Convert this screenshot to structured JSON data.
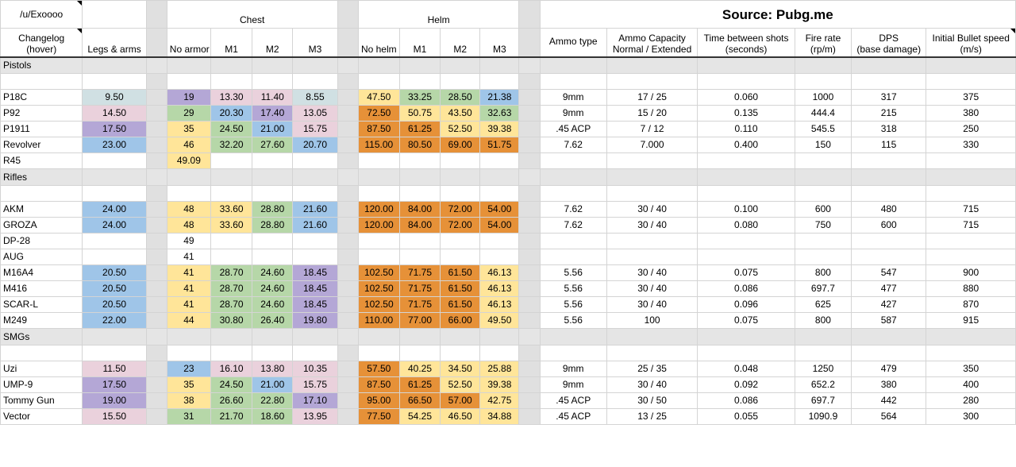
{
  "header": {
    "credit": "/u/Exoooo",
    "chest": "Chest",
    "helm": "Helm",
    "source": "Source: Pubg.me"
  },
  "columns": {
    "changelog": "Changelog\n(hover)",
    "legs_arms": "Legs & arms",
    "no_armor": "No armor",
    "chest_m1": "M1",
    "chest_m2": "M2",
    "chest_m3": "M3",
    "no_helm": "No helm",
    "helm_m1": "M1",
    "helm_m2": "M2",
    "helm_m3": "M3",
    "ammo_type": "Ammo type",
    "ammo_capacity": "Ammo Capacity\nNormal / Extended",
    "time_between": "Time between shots\n(seconds)",
    "fire_rate": "Fire rate\n(rp/m)",
    "dps": "DPS\n(base damage)",
    "bullet_speed": "Initial Bullet speed\n(m/s)"
  },
  "colors": {
    "purple": "#b4a7d6",
    "pink": "#ead1dc",
    "blue": "#9fc5e8",
    "green": "#b6d7a8",
    "yellow": "#ffe599",
    "orange": "#e69138",
    "teal": "#d0e0e3",
    "gap": "#e0e0e0",
    "section": "#e5e5e5"
  },
  "sections": [
    {
      "title": "Pistols",
      "rows": [
        {
          "name": "P18C",
          "legs": "9.50",
          "legs_c": "teal",
          "noarmor": "19",
          "noarmor_c": "purple",
          "c1": "13.30",
          "c1_c": "pink",
          "c2": "11.40",
          "c2_c": "pink",
          "c3": "8.55",
          "c3_c": "teal",
          "nohelm": "47.50",
          "nohelm_c": "yellow",
          "h1": "33.25",
          "h1_c": "green",
          "h2": "28.50",
          "h2_c": "green",
          "h3": "21.38",
          "h3_c": "blue",
          "ammo": "9mm",
          "cap": "17 / 25",
          "time": "0.060",
          "rate": "1000",
          "dps": "317",
          "speed": "375"
        },
        {
          "name": "P92",
          "legs": "14.50",
          "legs_c": "pink",
          "noarmor": "29",
          "noarmor_c": "green",
          "c1": "20.30",
          "c1_c": "blue",
          "c2": "17.40",
          "c2_c": "purple",
          "c3": "13.05",
          "c3_c": "pink",
          "nohelm": "72.50",
          "nohelm_c": "orange",
          "h1": "50.75",
          "h1_c": "yellow",
          "h2": "43.50",
          "h2_c": "yellow",
          "h3": "32.63",
          "h3_c": "green",
          "ammo": "9mm",
          "cap": "15 / 20",
          "time": "0.135",
          "rate": "444.4",
          "dps": "215",
          "speed": "380"
        },
        {
          "name": "P1911",
          "legs": "17.50",
          "legs_c": "purple",
          "noarmor": "35",
          "noarmor_c": "yellow",
          "c1": "24.50",
          "c1_c": "green",
          "c2": "21.00",
          "c2_c": "blue",
          "c3": "15.75",
          "c3_c": "pink",
          "nohelm": "87.50",
          "nohelm_c": "orange",
          "h1": "61.25",
          "h1_c": "orange",
          "h2": "52.50",
          "h2_c": "yellow",
          "h3": "39.38",
          "h3_c": "yellow",
          "ammo": ".45 ACP",
          "cap": "7 / 12",
          "time": "0.110",
          "rate": "545.5",
          "dps": "318",
          "speed": "250"
        },
        {
          "name": "Revolver",
          "legs": "23.00",
          "legs_c": "blue",
          "noarmor": "46",
          "noarmor_c": "yellow",
          "c1": "32.20",
          "c1_c": "green",
          "c2": "27.60",
          "c2_c": "green",
          "c3": "20.70",
          "c3_c": "blue",
          "nohelm": "115.00",
          "nohelm_c": "orange",
          "h1": "80.50",
          "h1_c": "orange",
          "h2": "69.00",
          "h2_c": "orange",
          "h3": "51.75",
          "h3_c": "orange",
          "ammo": "7.62",
          "cap": "7.000",
          "time": "0.400",
          "rate": "150",
          "dps": "115",
          "speed": "330"
        },
        {
          "name": "R45",
          "legs": "",
          "legs_c": "",
          "noarmor": "49.09",
          "noarmor_c": "yellow",
          "c1": "",
          "c1_c": "",
          "c2": "",
          "c2_c": "",
          "c3": "",
          "c3_c": "",
          "nohelm": "",
          "nohelm_c": "",
          "h1": "",
          "h1_c": "",
          "h2": "",
          "h2_c": "",
          "h3": "",
          "h3_c": "",
          "ammo": "",
          "cap": "",
          "time": "",
          "rate": "",
          "dps": "",
          "speed": ""
        }
      ]
    },
    {
      "title": "Rifles",
      "rows": [
        {
          "name": "AKM",
          "legs": "24.00",
          "legs_c": "blue",
          "noarmor": "48",
          "noarmor_c": "yellow",
          "c1": "33.60",
          "c1_c": "yellow",
          "c2": "28.80",
          "c2_c": "green",
          "c3": "21.60",
          "c3_c": "blue",
          "nohelm": "120.00",
          "nohelm_c": "orange",
          "h1": "84.00",
          "h1_c": "orange",
          "h2": "72.00",
          "h2_c": "orange",
          "h3": "54.00",
          "h3_c": "orange",
          "ammo": "7.62",
          "cap": "30 / 40",
          "time": "0.100",
          "rate": "600",
          "dps": "480",
          "speed": "715"
        },
        {
          "name": "GROZA",
          "legs": "24.00",
          "legs_c": "blue",
          "noarmor": "48",
          "noarmor_c": "yellow",
          "c1": "33.60",
          "c1_c": "yellow",
          "c2": "28.80",
          "c2_c": "green",
          "c3": "21.60",
          "c3_c": "blue",
          "nohelm": "120.00",
          "nohelm_c": "orange",
          "h1": "84.00",
          "h1_c": "orange",
          "h2": "72.00",
          "h2_c": "orange",
          "h3": "54.00",
          "h3_c": "orange",
          "ammo": "7.62",
          "cap": "30 / 40",
          "time": "0.080",
          "rate": "750",
          "dps": "600",
          "speed": "715"
        },
        {
          "name": "DP-28",
          "legs": "",
          "legs_c": "",
          "noarmor": "49",
          "noarmor_c": "",
          "c1": "",
          "c1_c": "",
          "c2": "",
          "c2_c": "",
          "c3": "",
          "c3_c": "",
          "nohelm": "",
          "nohelm_c": "",
          "h1": "",
          "h1_c": "",
          "h2": "",
          "h2_c": "",
          "h3": "",
          "h3_c": "",
          "ammo": "",
          "cap": "",
          "time": "",
          "rate": "",
          "dps": "",
          "speed": ""
        },
        {
          "name": "AUG",
          "legs": "",
          "legs_c": "",
          "noarmor": "41",
          "noarmor_c": "",
          "c1": "",
          "c1_c": "",
          "c2": "",
          "c2_c": "",
          "c3": "",
          "c3_c": "",
          "nohelm": "",
          "nohelm_c": "",
          "h1": "",
          "h1_c": "",
          "h2": "",
          "h2_c": "",
          "h3": "",
          "h3_c": "",
          "ammo": "",
          "cap": "",
          "time": "",
          "rate": "",
          "dps": "",
          "speed": ""
        },
        {
          "name": "M16A4",
          "legs": "20.50",
          "legs_c": "blue",
          "noarmor": "41",
          "noarmor_c": "yellow",
          "c1": "28.70",
          "c1_c": "green",
          "c2": "24.60",
          "c2_c": "green",
          "c3": "18.45",
          "c3_c": "purple",
          "nohelm": "102.50",
          "nohelm_c": "orange",
          "h1": "71.75",
          "h1_c": "orange",
          "h2": "61.50",
          "h2_c": "orange",
          "h3": "46.13",
          "h3_c": "yellow",
          "ammo": "5.56",
          "cap": "30 / 40",
          "time": "0.075",
          "rate": "800",
          "dps": "547",
          "speed": "900"
        },
        {
          "name": "M416",
          "legs": "20.50",
          "legs_c": "blue",
          "noarmor": "41",
          "noarmor_c": "yellow",
          "c1": "28.70",
          "c1_c": "green",
          "c2": "24.60",
          "c2_c": "green",
          "c3": "18.45",
          "c3_c": "purple",
          "nohelm": "102.50",
          "nohelm_c": "orange",
          "h1": "71.75",
          "h1_c": "orange",
          "h2": "61.50",
          "h2_c": "orange",
          "h3": "46.13",
          "h3_c": "yellow",
          "ammo": "5.56",
          "cap": "30 / 40",
          "time": "0.086",
          "rate": "697.7",
          "dps": "477",
          "speed": "880"
        },
        {
          "name": "SCAR-L",
          "legs": "20.50",
          "legs_c": "blue",
          "noarmor": "41",
          "noarmor_c": "yellow",
          "c1": "28.70",
          "c1_c": "green",
          "c2": "24.60",
          "c2_c": "green",
          "c3": "18.45",
          "c3_c": "purple",
          "nohelm": "102.50",
          "nohelm_c": "orange",
          "h1": "71.75",
          "h1_c": "orange",
          "h2": "61.50",
          "h2_c": "orange",
          "h3": "46.13",
          "h3_c": "yellow",
          "ammo": "5.56",
          "cap": "30 / 40",
          "time": "0.096",
          "rate": "625",
          "dps": "427",
          "speed": "870"
        },
        {
          "name": "M249",
          "legs": "22.00",
          "legs_c": "blue",
          "noarmor": "44",
          "noarmor_c": "yellow",
          "c1": "30.80",
          "c1_c": "green",
          "c2": "26.40",
          "c2_c": "green",
          "c3": "19.80",
          "c3_c": "purple",
          "nohelm": "110.00",
          "nohelm_c": "orange",
          "h1": "77.00",
          "h1_c": "orange",
          "h2": "66.00",
          "h2_c": "orange",
          "h3": "49.50",
          "h3_c": "yellow",
          "ammo": "5.56",
          "cap": "100",
          "time": "0.075",
          "rate": "800",
          "dps": "587",
          "speed": "915"
        }
      ]
    },
    {
      "title": "SMGs",
      "rows": [
        {
          "name": "Uzi",
          "legs": "11.50",
          "legs_c": "pink",
          "noarmor": "23",
          "noarmor_c": "blue",
          "c1": "16.10",
          "c1_c": "pink",
          "c2": "13.80",
          "c2_c": "pink",
          "c3": "10.35",
          "c3_c": "pink",
          "nohelm": "57.50",
          "nohelm_c": "orange",
          "h1": "40.25",
          "h1_c": "yellow",
          "h2": "34.50",
          "h2_c": "yellow",
          "h3": "25.88",
          "h3_c": "yellow",
          "ammo": "9mm",
          "cap": "25 / 35",
          "time": "0.048",
          "rate": "1250",
          "dps": "479",
          "speed": "350"
        },
        {
          "name": "UMP-9",
          "legs": "17.50",
          "legs_c": "purple",
          "noarmor": "35",
          "noarmor_c": "yellow",
          "c1": "24.50",
          "c1_c": "green",
          "c2": "21.00",
          "c2_c": "blue",
          "c3": "15.75",
          "c3_c": "pink",
          "nohelm": "87.50",
          "nohelm_c": "orange",
          "h1": "61.25",
          "h1_c": "orange",
          "h2": "52.50",
          "h2_c": "yellow",
          "h3": "39.38",
          "h3_c": "yellow",
          "ammo": "9mm",
          "cap": "30 / 40",
          "time": "0.092",
          "rate": "652.2",
          "dps": "380",
          "speed": "400"
        },
        {
          "name": "Tommy Gun",
          "legs": "19.00",
          "legs_c": "purple",
          "noarmor": "38",
          "noarmor_c": "yellow",
          "c1": "26.60",
          "c1_c": "green",
          "c2": "22.80",
          "c2_c": "green",
          "c3": "17.10",
          "c3_c": "purple",
          "nohelm": "95.00",
          "nohelm_c": "orange",
          "h1": "66.50",
          "h1_c": "orange",
          "h2": "57.00",
          "h2_c": "orange",
          "h3": "42.75",
          "h3_c": "yellow",
          "ammo": ".45 ACP",
          "cap": "30 / 50",
          "time": "0.086",
          "rate": "697.7",
          "dps": "442",
          "speed": "280"
        },
        {
          "name": "Vector",
          "legs": "15.50",
          "legs_c": "pink",
          "noarmor": "31",
          "noarmor_c": "green",
          "c1": "21.70",
          "c1_c": "green",
          "c2": "18.60",
          "c2_c": "green",
          "c3": "13.95",
          "c3_c": "pink",
          "nohelm": "77.50",
          "nohelm_c": "orange",
          "h1": "54.25",
          "h1_c": "yellow",
          "h2": "46.50",
          "h2_c": "yellow",
          "h3": "34.88",
          "h3_c": "yellow",
          "ammo": ".45 ACP",
          "cap": "13 / 25",
          "time": "0.055",
          "rate": "1090.9",
          "dps": "564",
          "speed": "300"
        }
      ]
    }
  ]
}
